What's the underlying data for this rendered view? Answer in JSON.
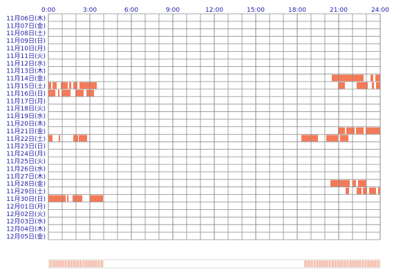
{
  "chart_data": {
    "type": "activity-timeline",
    "x_axis": {
      "range_hours": [
        0,
        24
      ],
      "tick_labels": [
        "0:00",
        "3:00",
        "6:00",
        "9:00",
        "12:00",
        "15:00",
        "18:00",
        "21:00",
        "24:00"
      ],
      "tick_hours": [
        0,
        3,
        6,
        9,
        12,
        15,
        18,
        21,
        24
      ],
      "label_color": "#1a1aa8"
    },
    "rows": [
      "11月06日(木)",
      "11月07日(金)",
      "11月08日(土)",
      "11月09日(日)",
      "11月10日(月)",
      "11月11日(火)",
      "11月12日(水)",
      "11月13日(木)",
      "11月14日(金)",
      "11月15日(土)",
      "11月16日(日)",
      "11月17日(月)",
      "11月18日(火)",
      "11月19日(水)",
      "11月20日(木)",
      "11月21日(金)",
      "11月22日(土)",
      "11月23日(日)",
      "11月24日(月)",
      "11月25日(火)",
      "11月26日(水)",
      "11月27日(木)",
      "11月28日(金)",
      "11月29日(土)",
      "11月30日(日)",
      "12月01日(月)",
      "12月02日(火)",
      "12月03日(水)",
      "12月04日(木)",
      "12月05日(金)"
    ],
    "row_label_color": "#1a1aa8",
    "grid": true,
    "colors": {
      "activity": "#f47a58",
      "grid": "#8a8a8a",
      "heatmap_low": "#fff5f0",
      "heatmap_high": "#f7b6a2"
    },
    "activity": [
      {
        "row": 8,
        "segments": [
          [
            20.5,
            22.8
          ],
          [
            23.3,
            23.5
          ],
          [
            23.65,
            24.0
          ]
        ]
      },
      {
        "row": 9,
        "segments": [
          [
            0.0,
            0.2
          ],
          [
            0.3,
            0.6
          ],
          [
            0.9,
            1.4
          ],
          [
            1.5,
            1.65
          ],
          [
            1.8,
            2.1
          ],
          [
            2.25,
            3.5
          ]
        ]
      },
      {
        "row": 9,
        "segments": [
          [
            20.95,
            21.45
          ],
          [
            22.3,
            23.1
          ],
          [
            23.4,
            23.55
          ],
          [
            23.7,
            24.0
          ]
        ]
      },
      {
        "row": 10,
        "segments": [
          [
            0.0,
            0.5
          ],
          [
            0.7,
            0.8
          ],
          [
            0.95,
            1.6
          ],
          [
            1.95,
            2.55
          ],
          [
            2.75,
            3.3
          ]
        ]
      },
      {
        "row": 15,
        "segments": [
          [
            20.95,
            21.45
          ],
          [
            21.55,
            22.15
          ],
          [
            22.25,
            22.8
          ],
          [
            22.95,
            24.0
          ]
        ]
      },
      {
        "row": 16,
        "segments": [
          [
            0.0,
            0.3
          ],
          [
            0.75,
            0.85
          ],
          [
            1.8,
            2.15
          ],
          [
            2.2,
            2.8
          ]
        ]
      },
      {
        "row": 16,
        "segments": [
          [
            18.3,
            19.5
          ],
          [
            20.1,
            20.95
          ],
          [
            21.1,
            21.7
          ]
        ]
      },
      {
        "row": 22,
        "segments": [
          [
            20.4,
            21.8
          ],
          [
            22.0,
            22.25
          ],
          [
            22.4,
            23.0
          ]
        ]
      },
      {
        "row": 23,
        "segments": [
          [
            21.5,
            21.75
          ],
          [
            22.3,
            22.65
          ],
          [
            22.75,
            23.05
          ],
          [
            23.2,
            23.7
          ],
          [
            23.85,
            24.0
          ]
        ]
      },
      {
        "row": 24,
        "segments": [
          [
            0.0,
            1.25
          ],
          [
            1.35,
            1.45
          ],
          [
            1.75,
            2.45
          ],
          [
            3.0,
            3.95
          ]
        ]
      }
    ],
    "heatmap_bands": [
      [
        0.0,
        4.0
      ],
      [
        18.5,
        24.0
      ]
    ]
  }
}
